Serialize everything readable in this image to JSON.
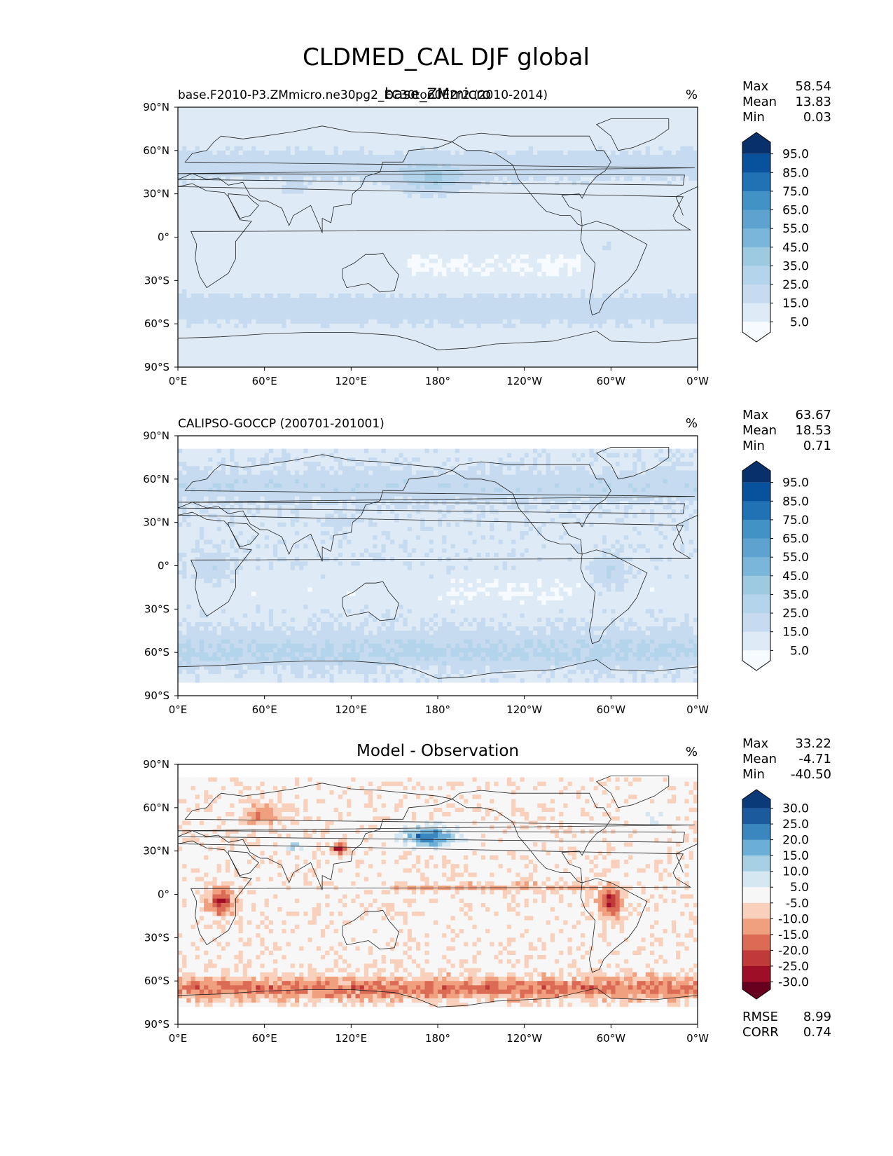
{
  "figure": {
    "title": "CLDMED_CAL DJF global"
  },
  "colors": {
    "blues": [
      "#f7fbff",
      "#deebf7",
      "#c6dbef",
      "#b4d4ec",
      "#9ecae1",
      "#7ab6d9",
      "#5ea3d0",
      "#4292c6",
      "#2171b5",
      "#08519c",
      "#08306b"
    ],
    "diff": [
      "#67001f",
      "#9e0f27",
      "#c13a3a",
      "#db6b55",
      "#f0a07f",
      "#f9d0bb",
      "#f7f7f7",
      "#d5e7f1",
      "#a7d0e4",
      "#6baed6",
      "#3a87c0",
      "#1c5a9e",
      "#0a3a78"
    ]
  },
  "chart_data": [
    {
      "type": "heatmap",
      "panel": "top",
      "title_left": "base.F2010-P3.ZMmicro.ne30pg2_EC30to60E2r2 (2010-2014)",
      "title_center": "base_ZMmicro",
      "title_right": "%",
      "stats": [
        [
          "Max",
          "58.54"
        ],
        [
          "Mean",
          "13.83"
        ],
        [
          "Min",
          "0.03"
        ]
      ],
      "xticks": [
        "0°E",
        "60°E",
        "120°E",
        "180°",
        "120°W",
        "60°W",
        "0°W"
      ],
      "yticks": [
        "90°N",
        "60°N",
        "30°N",
        "0°",
        "30°S",
        "60°S",
        "90°S"
      ],
      "colorbar_labels": [
        "95.0",
        "85.0",
        "75.0",
        "65.0",
        "55.0",
        "45.0",
        "35.0",
        "25.0",
        "15.0",
        "5.0"
      ],
      "field": "model"
    },
    {
      "type": "heatmap",
      "panel": "middle",
      "title_left": "CALIPSO-GOCCP (200701-201001)",
      "title_center": "",
      "title_right": "%",
      "stats": [
        [
          "Max",
          "63.67"
        ],
        [
          "Mean",
          "18.53"
        ],
        [
          "Min",
          "0.71"
        ]
      ],
      "xticks": [
        "0°E",
        "60°E",
        "120°E",
        "180°",
        "120°W",
        "60°W",
        "0°W"
      ],
      "yticks": [
        "90°N",
        "60°N",
        "30°N",
        "0°",
        "30°S",
        "60°S",
        "90°S"
      ],
      "colorbar_labels": [
        "95.0",
        "85.0",
        "75.0",
        "65.0",
        "55.0",
        "45.0",
        "35.0",
        "25.0",
        "15.0",
        "5.0"
      ],
      "field": "obs"
    },
    {
      "type": "heatmap",
      "panel": "bottom",
      "title_left": "",
      "title_center": "Model - Observation",
      "title_right": "%",
      "stats": [
        [
          "Max",
          "33.22"
        ],
        [
          "Mean",
          "-4.71"
        ],
        [
          "Min",
          "-40.50"
        ]
      ],
      "xticks": [
        "0°E",
        "60°E",
        "120°E",
        "180°",
        "120°W",
        "60°W",
        "0°W"
      ],
      "yticks": [
        "90°N",
        "60°N",
        "30°N",
        "0°",
        "30°S",
        "60°S",
        "90°S"
      ],
      "colorbar_labels": [
        "30.0",
        "25.0",
        "20.0",
        "15.0",
        "10.0",
        "5.0",
        "-5.0",
        "-10.0",
        "-15.0",
        "-20.0",
        "-25.0",
        "-30.0"
      ],
      "extra_stats": [
        [
          "RMSE",
          "8.99"
        ],
        [
          "CORR",
          "0.74"
        ]
      ],
      "field": "diff"
    }
  ]
}
